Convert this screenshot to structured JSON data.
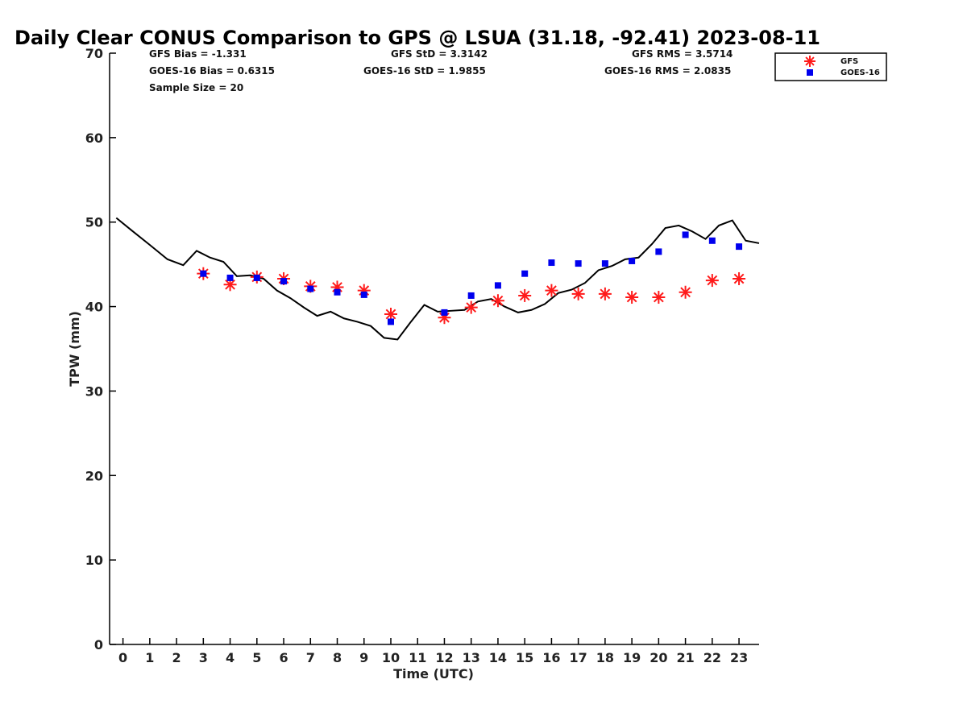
{
  "chart_data": {
    "type": "scatter",
    "title": "Daily Clear CONUS Comparison to GPS @ LSUA (31.18, -92.41) 2023-08-11",
    "xlabel": "Time (UTC)",
    "ylabel": "TPW (mm)",
    "xlim": [
      -0.5,
      23.75
    ],
    "ylim": [
      0,
      70
    ],
    "xticks": [
      0,
      1,
      2,
      3,
      4,
      5,
      6,
      7,
      8,
      9,
      10,
      11,
      12,
      13,
      14,
      15,
      16,
      17,
      18,
      19,
      20,
      21,
      22,
      23
    ],
    "yticks": [
      0,
      10,
      20,
      30,
      40,
      50,
      60,
      70
    ],
    "grid": false,
    "legend_position": "top-right",
    "stats": [
      [
        "GFS Bias = -1.331",
        "GFS StD = 3.3142",
        "GFS RMS = 3.5714"
      ],
      [
        "GOES-16 Bias = 0.6315",
        "GOES-16 StD = 1.9855",
        "GOES-16 RMS = 2.0835"
      ],
      [
        "Sample Size = 20"
      ]
    ],
    "series": [
      {
        "name": "GPS",
        "mark": "line",
        "color": "#000000",
        "x": [
          -0.25,
          0.33,
          1.0,
          1.66,
          2.25,
          2.75,
          3.25,
          3.75,
          4.25,
          4.75,
          5.25,
          5.75,
          6.25,
          6.75,
          7.25,
          7.75,
          8.25,
          8.75,
          9.25,
          9.75,
          10.25,
          10.75,
          11.25,
          11.75,
          12.25,
          12.75,
          13.25,
          13.75,
          14.25,
          14.75,
          15.25,
          15.75,
          16.25,
          16.75,
          17.25,
          17.75,
          18.25,
          18.75,
          19.25,
          19.75,
          20.25,
          20.75,
          21.25,
          21.75,
          22.25,
          22.75,
          23.25,
          23.75
        ],
        "y": [
          50.5,
          49.0,
          47.3,
          45.6,
          44.9,
          46.6,
          45.8,
          45.3,
          43.6,
          43.7,
          43.3,
          41.9,
          41.0,
          39.9,
          38.9,
          39.4,
          38.6,
          38.2,
          37.7,
          36.3,
          36.1,
          38.2,
          40.2,
          39.4,
          39.5,
          39.6,
          40.6,
          40.9,
          40.0,
          39.3,
          39.6,
          40.3,
          41.6,
          42.0,
          42.8,
          44.3,
          44.8,
          45.6,
          45.8,
          47.4,
          49.3,
          49.6,
          48.9,
          48.0,
          49.6,
          50.2,
          47.8,
          47.5
        ]
      },
      {
        "name": "GFS",
        "mark": "asterisk",
        "color": "#ff1a1a",
        "x": [
          3,
          4,
          5,
          6,
          7,
          8,
          9,
          10,
          12,
          13,
          14,
          15,
          16,
          17,
          18,
          19,
          20,
          21,
          22,
          23
        ],
        "y": [
          43.9,
          42.6,
          43.5,
          43.3,
          42.4,
          42.3,
          41.9,
          39.1,
          38.7,
          39.9,
          40.7,
          41.3,
          41.9,
          41.5,
          41.5,
          41.1,
          41.1,
          41.7,
          43.1,
          43.3
        ]
      },
      {
        "name": "GOES-16",
        "mark": "square",
        "color": "#0000ee",
        "x": [
          3,
          4,
          5,
          6,
          7,
          8,
          9,
          10,
          12,
          13,
          14,
          15,
          16,
          17,
          18,
          19,
          20,
          21,
          22,
          23
        ],
        "y": [
          43.9,
          43.4,
          43.4,
          43.0,
          42.1,
          41.7,
          41.4,
          38.2,
          39.3,
          41.3,
          42.5,
          43.9,
          45.2,
          45.1,
          45.1,
          45.4,
          46.5,
          48.5,
          47.8,
          47.1
        ]
      }
    ]
  }
}
